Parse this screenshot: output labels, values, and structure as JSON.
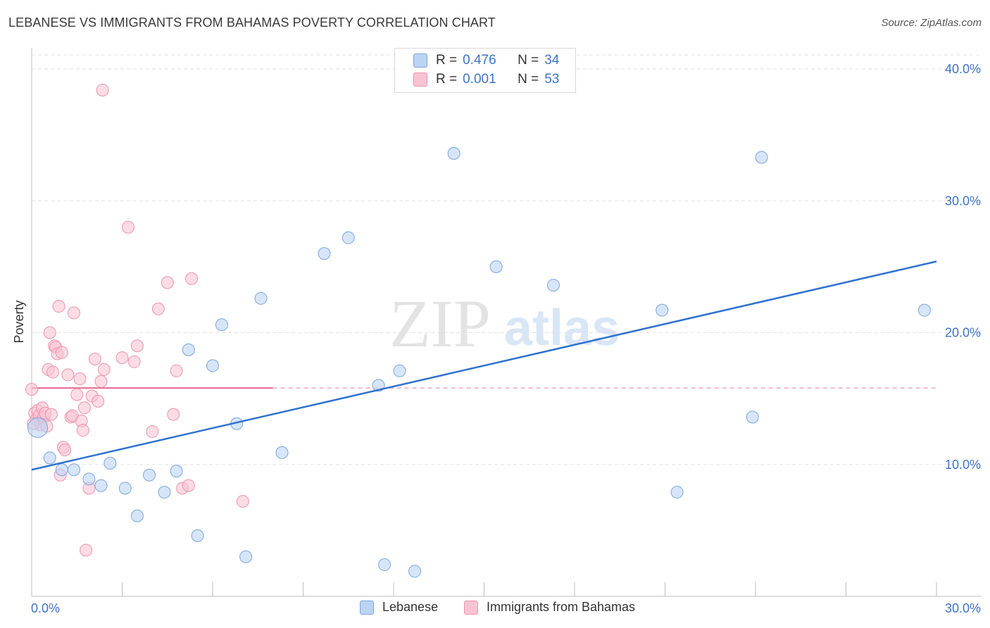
{
  "title": "LEBANESE VS IMMIGRANTS FROM BAHAMAS POVERTY CORRELATION CHART",
  "source": "Source: ZipAtlas.com",
  "watermark": {
    "zip": "ZIP",
    "atlas": "atlas"
  },
  "legend_top": {
    "rows": [
      {
        "r_label": "R =",
        "r_value": "0.476",
        "n_label": "N =",
        "n_value": "34"
      },
      {
        "r_label": "R =",
        "r_value": "0.001",
        "n_label": "N =",
        "n_value": "53"
      }
    ]
  },
  "legend_bottom": {
    "items": [
      {
        "label": "Lebanese"
      },
      {
        "label": "Immigrants from Bahamas"
      }
    ]
  },
  "colors": {
    "blue_fill": "#bcd4f4",
    "blue_stroke": "#7aa6e0",
    "blue_line": "#2f72d0",
    "pink_fill": "#f8c4d4",
    "pink_stroke": "#ee93b0",
    "pink_line": "#e8668f",
    "tick_label": "#3f74c7"
  },
  "chart_data": {
    "type": "scatter",
    "title": "LEBANESE VS IMMIGRANTS FROM BAHAMAS POVERTY CORRELATION CHART",
    "xlabel": "",
    "ylabel": "Poverty",
    "xlim": [
      0,
      30
    ],
    "ylim": [
      0,
      40
    ],
    "x_tick_labels": [
      "0.0%",
      "30.0%"
    ],
    "y_ticks": [
      10,
      20,
      30,
      40
    ],
    "y_tick_labels": [
      "10.0%",
      "20.0%",
      "30.0%",
      "40.0%"
    ],
    "grid": true,
    "legend_position": "top-center",
    "series": [
      {
        "name": "Lebanese",
        "color": "#7aa6e0",
        "points": [
          [
            0.2,
            12.8
          ],
          [
            0.6,
            10.5
          ],
          [
            1.0,
            9.6
          ],
          [
            1.4,
            9.6
          ],
          [
            1.9,
            8.9
          ],
          [
            2.3,
            8.4
          ],
          [
            2.6,
            10.1
          ],
          [
            3.1,
            8.2
          ],
          [
            3.5,
            6.1
          ],
          [
            3.9,
            9.2
          ],
          [
            4.4,
            7.9
          ],
          [
            4.8,
            9.5
          ],
          [
            5.2,
            18.7
          ],
          [
            5.5,
            4.6
          ],
          [
            6.0,
            17.5
          ],
          [
            6.3,
            20.6
          ],
          [
            6.8,
            13.1
          ],
          [
            7.1,
            3.0
          ],
          [
            7.6,
            22.6
          ],
          [
            8.3,
            10.9
          ],
          [
            9.7,
            26.0
          ],
          [
            10.5,
            27.2
          ],
          [
            11.5,
            16.0
          ],
          [
            11.7,
            2.4
          ],
          [
            12.2,
            17.1
          ],
          [
            12.7,
            1.9
          ],
          [
            14.0,
            33.6
          ],
          [
            15.4,
            25.0
          ],
          [
            17.3,
            23.6
          ],
          [
            20.9,
            21.7
          ],
          [
            21.4,
            7.9
          ],
          [
            23.9,
            13.6
          ],
          [
            24.2,
            33.3
          ],
          [
            29.6,
            21.7
          ]
        ]
      },
      {
        "name": "Immigrants from Bahamas",
        "color": "#ee93b0",
        "points": [
          [
            0.0,
            15.7
          ],
          [
            0.1,
            13.9
          ],
          [
            0.15,
            13.4
          ],
          [
            0.2,
            14.1
          ],
          [
            0.25,
            13.7
          ],
          [
            0.3,
            13.0
          ],
          [
            0.35,
            14.3
          ],
          [
            0.4,
            13.6
          ],
          [
            0.45,
            13.9
          ],
          [
            0.5,
            12.9
          ],
          [
            0.55,
            17.2
          ],
          [
            0.6,
            20.0
          ],
          [
            0.65,
            13.8
          ],
          [
            0.7,
            17.0
          ],
          [
            0.75,
            19.0
          ],
          [
            0.8,
            18.9
          ],
          [
            0.85,
            18.4
          ],
          [
            0.9,
            22.0
          ],
          [
            0.95,
            9.2
          ],
          [
            1.0,
            18.5
          ],
          [
            1.05,
            11.3
          ],
          [
            1.1,
            11.1
          ],
          [
            1.2,
            16.8
          ],
          [
            1.3,
            13.6
          ],
          [
            1.35,
            13.7
          ],
          [
            1.4,
            21.5
          ],
          [
            1.5,
            15.3
          ],
          [
            1.6,
            16.5
          ],
          [
            1.65,
            13.3
          ],
          [
            1.7,
            12.6
          ],
          [
            1.75,
            14.3
          ],
          [
            1.8,
            3.5
          ],
          [
            1.9,
            8.2
          ],
          [
            2.0,
            15.2
          ],
          [
            2.1,
            18.0
          ],
          [
            2.2,
            14.8
          ],
          [
            2.3,
            16.3
          ],
          [
            2.35,
            38.4
          ],
          [
            2.4,
            17.2
          ],
          [
            3.0,
            18.1
          ],
          [
            3.2,
            28.0
          ],
          [
            3.4,
            17.8
          ],
          [
            3.5,
            19.0
          ],
          [
            4.0,
            12.5
          ],
          [
            4.2,
            21.8
          ],
          [
            4.5,
            23.8
          ],
          [
            4.7,
            13.8
          ],
          [
            4.8,
            17.1
          ],
          [
            5.0,
            8.2
          ],
          [
            5.2,
            8.4
          ],
          [
            5.3,
            24.1
          ],
          [
            7.0,
            7.2
          ],
          [
            0.05,
            13.1
          ]
        ]
      }
    ],
    "trend_lines": [
      {
        "series": "Lebanese",
        "x": [
          0,
          30
        ],
        "y": [
          9.6,
          25.4
        ]
      },
      {
        "series": "Immigrants from Bahamas",
        "x": [
          0,
          30
        ],
        "y": [
          15.8,
          15.8
        ]
      }
    ]
  }
}
